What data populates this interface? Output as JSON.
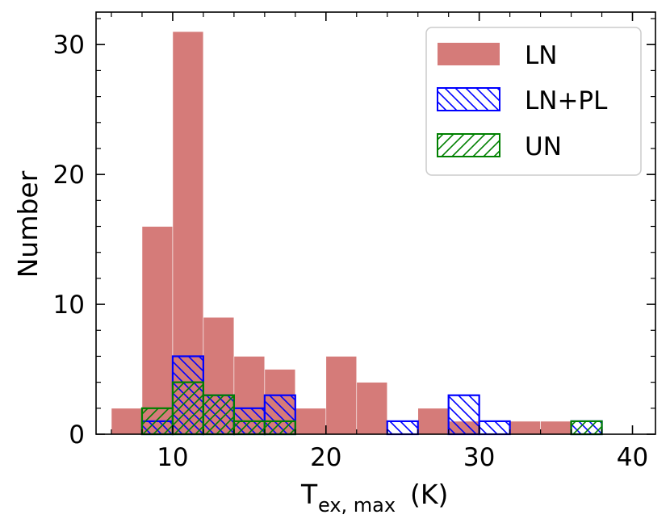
{
  "chart_data": {
    "type": "histogram",
    "xlabel": {
      "main": "T",
      "sub": "ex, max",
      "unit": "(K)"
    },
    "ylabel": "Number",
    "xlim": [
      5,
      41.5
    ],
    "ylim": [
      0,
      32.5
    ],
    "xticks": [
      10,
      20,
      30,
      40
    ],
    "yticks": [
      0,
      10,
      20,
      30
    ],
    "xtick_labels": [
      "10",
      "20",
      "30",
      "40"
    ],
    "ytick_labels": [
      "0",
      "10",
      "20",
      "30"
    ],
    "bin_edges": [
      6,
      8,
      10,
      12,
      14,
      16,
      18,
      20,
      22,
      24,
      26,
      28,
      30,
      32,
      34,
      36,
      38,
      40
    ],
    "series": [
      {
        "name": "LN",
        "style": "filled",
        "color": "#d57b79",
        "values": [
          2,
          16,
          31,
          9,
          6,
          5,
          2,
          6,
          4,
          0,
          2,
          1,
          0,
          1,
          1,
          0,
          0
        ]
      },
      {
        "name": "LN+PL",
        "style": "hatch-back",
        "color": "#0000ff",
        "values": [
          0,
          1,
          6,
          3,
          2,
          3,
          0,
          0,
          0,
          1,
          0,
          3,
          1,
          0,
          0,
          1,
          0
        ]
      },
      {
        "name": "UN",
        "style": "hatch-forward",
        "color": "#008000",
        "values": [
          0,
          2,
          4,
          3,
          1,
          1,
          0,
          0,
          0,
          0,
          0,
          0,
          0,
          0,
          0,
          1,
          0
        ]
      }
    ],
    "legend": {
      "position": "top-right",
      "entries": [
        "LN",
        "LN+PL",
        "UN"
      ]
    }
  }
}
